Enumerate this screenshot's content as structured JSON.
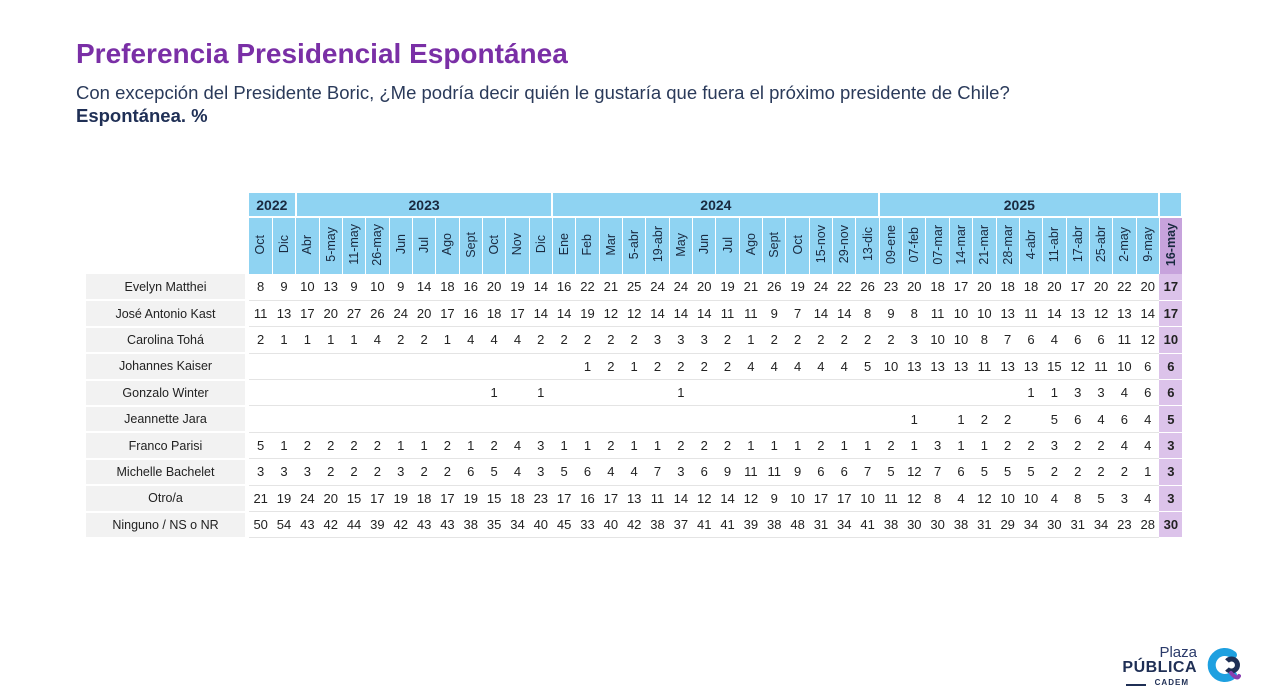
{
  "header": {
    "title": "Preferencia Presidencial Espontánea",
    "subtitle": "Con excepción del Presidente Boric, ¿Me podría decir quién le gustaría que fuera el próximo presidente de Chile?",
    "subtitle2": "Espontánea. %"
  },
  "table": {
    "years": [
      {
        "label": "2022",
        "span": 2
      },
      {
        "label": "2023",
        "span": 11
      },
      {
        "label": "2024",
        "span": 14
      },
      {
        "label": "2025",
        "span": 12
      },
      {
        "label": "",
        "span": 1
      }
    ],
    "dates": [
      "Oct",
      "Dic",
      "Abr",
      "5-may",
      "11-may",
      "26-may",
      "Jun",
      "Jul",
      "Ago",
      "Sept",
      "Oct",
      "Nov",
      "Dic",
      "Ene",
      "Feb",
      "Mar",
      "5-abr",
      "19-abr",
      "May",
      "Jun",
      "Jul",
      "Ago",
      "Sept",
      "Oct",
      "15-nov",
      "29-nov",
      "13-dic",
      "09-ene",
      "07-feb",
      "07-mar",
      "14-mar",
      "21-mar",
      "28-mar",
      "4-abr",
      "11-abr",
      "17-abr",
      "25-abr",
      "2-may",
      "9-may",
      "16-may"
    ],
    "highlight_index": 39,
    "rows": [
      {
        "name": "Evelyn Matthei",
        "values": [
          "8",
          "9",
          "10",
          "13",
          "9",
          "10",
          "9",
          "14",
          "18",
          "16",
          "20",
          "19",
          "14",
          "16",
          "22",
          "21",
          "25",
          "24",
          "24",
          "20",
          "19",
          "21",
          "26",
          "19",
          "24",
          "22",
          "26",
          "23",
          "20",
          "18",
          "17",
          "20",
          "18",
          "18",
          "20",
          "17",
          "20",
          "22",
          "20",
          "17"
        ]
      },
      {
        "name": "José Antonio Kast",
        "values": [
          "11",
          "13",
          "17",
          "20",
          "27",
          "26",
          "24",
          "20",
          "17",
          "16",
          "18",
          "17",
          "14",
          "14",
          "19",
          "12",
          "12",
          "14",
          "14",
          "14",
          "11",
          "11",
          "9",
          "7",
          "14",
          "14",
          "8",
          "9",
          "8",
          "11",
          "10",
          "10",
          "13",
          "11",
          "14",
          "13",
          "12",
          "13",
          "14",
          "17"
        ]
      },
      {
        "name": "Carolina Tohá",
        "values": [
          "2",
          "1",
          "1",
          "1",
          "1",
          "4",
          "2",
          "2",
          "1",
          "4",
          "4",
          "4",
          "2",
          "2",
          "2",
          "2",
          "2",
          "3",
          "3",
          "3",
          "2",
          "1",
          "2",
          "2",
          "2",
          "2",
          "2",
          "2",
          "3",
          "10",
          "10",
          "8",
          "7",
          "6",
          "4",
          "6",
          "6",
          "11",
          "12",
          "10"
        ]
      },
      {
        "name": "Johannes Kaiser",
        "values": [
          "",
          "",
          "",
          "",
          "",
          "",
          "",
          "",
          "",
          "",
          "",
          "",
          "",
          "",
          "1",
          "2",
          "1",
          "2",
          "2",
          "2",
          "2",
          "4",
          "4",
          "4",
          "4",
          "4",
          "5",
          "10",
          "13",
          "13",
          "13",
          "11",
          "13",
          "13",
          "15",
          "12",
          "11",
          "10",
          "6",
          "6"
        ]
      },
      {
        "name": "Gonzalo Winter",
        "values": [
          "",
          "",
          "",
          "",
          "",
          "",
          "",
          "",
          "",
          "",
          "1",
          "",
          "1",
          "",
          "",
          "",
          "",
          "",
          "1",
          "",
          "",
          "",
          "",
          "",
          "",
          "",
          "",
          "",
          "",
          "",
          "",
          "",
          "",
          "1",
          "1",
          "3",
          "3",
          "4",
          "6",
          "6"
        ]
      },
      {
        "name": "Jeannette Jara",
        "values": [
          "",
          "",
          "",
          "",
          "",
          "",
          "",
          "",
          "",
          "",
          "",
          "",
          "",
          "",
          "",
          "",
          "",
          "",
          "",
          "",
          "",
          "",
          "",
          "",
          "",
          "",
          "",
          "",
          "1",
          "",
          "1",
          "2",
          "2",
          "",
          "5",
          "6",
          "4",
          "6",
          "4",
          "5"
        ]
      },
      {
        "name": "Franco Parisi",
        "values": [
          "5",
          "1",
          "2",
          "2",
          "2",
          "2",
          "1",
          "1",
          "2",
          "1",
          "2",
          "4",
          "3",
          "1",
          "1",
          "2",
          "1",
          "1",
          "2",
          "2",
          "2",
          "1",
          "1",
          "1",
          "2",
          "1",
          "1",
          "2",
          "1",
          "3",
          "1",
          "1",
          "2",
          "2",
          "3",
          "2",
          "2",
          "4",
          "4",
          "3"
        ]
      },
      {
        "name": "Michelle Bachelet",
        "values": [
          "3",
          "3",
          "3",
          "2",
          "2",
          "2",
          "3",
          "2",
          "2",
          "6",
          "5",
          "4",
          "3",
          "5",
          "6",
          "4",
          "4",
          "7",
          "3",
          "6",
          "9",
          "11",
          "11",
          "9",
          "6",
          "6",
          "7",
          "5",
          "12",
          "7",
          "6",
          "5",
          "5",
          "5",
          "2",
          "2",
          "2",
          "2",
          "1",
          "3"
        ]
      },
      {
        "name": "Otro/a",
        "values": [
          "21",
          "19",
          "24",
          "20",
          "15",
          "17",
          "19",
          "18",
          "17",
          "19",
          "15",
          "18",
          "23",
          "17",
          "16",
          "17",
          "13",
          "11",
          "14",
          "12",
          "14",
          "12",
          "9",
          "10",
          "17",
          "17",
          "10",
          "11",
          "12",
          "8",
          "4",
          "12",
          "10",
          "10",
          "4",
          "8",
          "5",
          "3",
          "4",
          "3"
        ]
      },
      {
        "name": "Ninguno / NS o NR",
        "values": [
          "50",
          "54",
          "43",
          "42",
          "44",
          "39",
          "42",
          "43",
          "43",
          "38",
          "35",
          "34",
          "40",
          "45",
          "33",
          "40",
          "42",
          "38",
          "37",
          "41",
          "41",
          "39",
          "38",
          "48",
          "31",
          "34",
          "41",
          "38",
          "30",
          "30",
          "38",
          "31",
          "29",
          "34",
          "30",
          "31",
          "34",
          "23",
          "28",
          "30"
        ]
      }
    ]
  },
  "logo": {
    "line1": "Plaza",
    "line2": "PÚBLICA",
    "line3": "CADEM",
    "icon": "cadem-c-logo-icon",
    "colors": {
      "navy": "#1f2f55",
      "blue": "#1ea0e0",
      "purple": "#8a3fb0"
    }
  },
  "colors": {
    "title": "#7a2fa6",
    "header_bg": "#8fd3f2",
    "highlight_header": "#c7a3dc",
    "highlight_cell": "#dcc3ea",
    "name_bg": "#f2f2f2"
  }
}
